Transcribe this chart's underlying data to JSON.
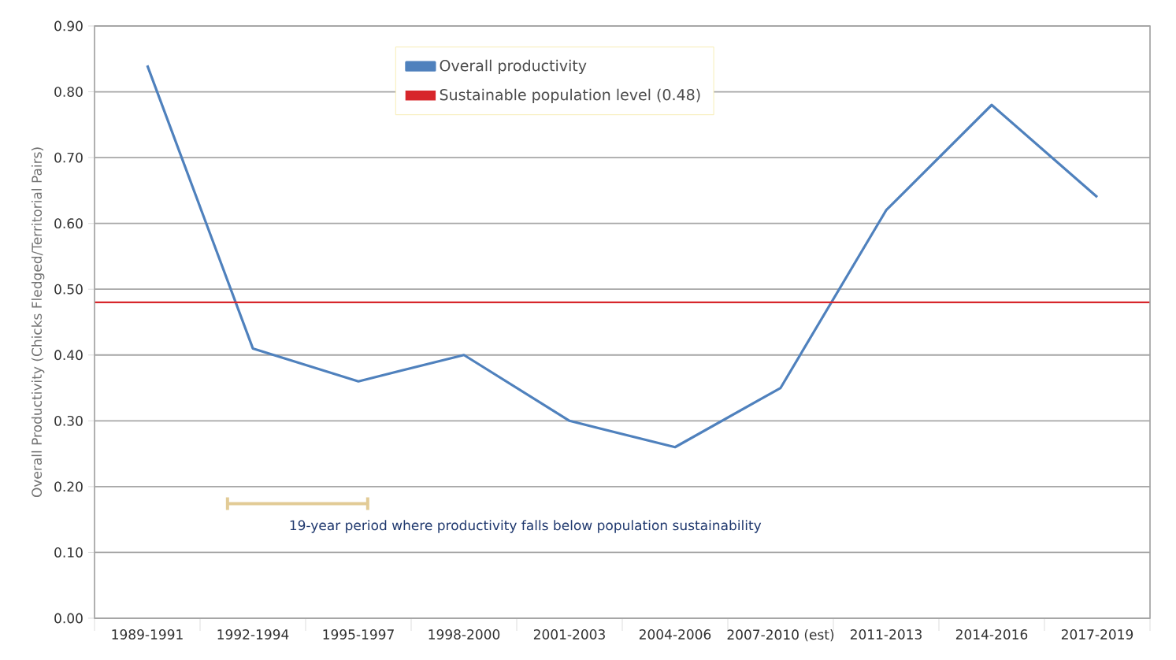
{
  "chart_data": {
    "type": "line",
    "ylabel": "Overall Productivity (Chicks Fledged/Territorial Pairs)",
    "categories": [
      "1989-1991",
      "1992-1994",
      "1995-1997",
      "1998-2000",
      "2001-2003",
      "2004-2006",
      "2007-2010 (est)",
      "2011-2013",
      "2014-2016",
      "2017-2019"
    ],
    "series": [
      {
        "name": "Overall productivity",
        "color": "#4f81bd",
        "values": [
          0.84,
          0.41,
          0.36,
          0.4,
          0.3,
          0.26,
          0.35,
          0.62,
          0.78,
          0.64
        ]
      }
    ],
    "ylim": [
      0,
      0.9
    ],
    "yticks": [
      {
        "value": 0,
        "label": "0.00"
      },
      {
        "value": 0.1,
        "label": "0.10"
      },
      {
        "value": 0.2,
        "label": "0.20"
      },
      {
        "value": 0.3,
        "label": "0.30"
      },
      {
        "value": 0.4,
        "label": "0.40"
      },
      {
        "value": 0.5,
        "label": "0.50"
      },
      {
        "value": 0.6,
        "label": "0.60"
      },
      {
        "value": 0.7,
        "label": "0.70"
      },
      {
        "value": 0.8,
        "label": "0.80"
      },
      {
        "value": 0.9,
        "label": "0.90"
      }
    ],
    "ref_lines": [
      {
        "axis": "y",
        "value": 0.48,
        "label": "Sustainable population level (0.48)",
        "color": "#d7262b"
      }
    ],
    "annotations": [
      "19-year period where productivity falls below population sustainability"
    ],
    "grid": "y",
    "legend": "top",
    "marker": "none",
    "line_style": "solid"
  }
}
